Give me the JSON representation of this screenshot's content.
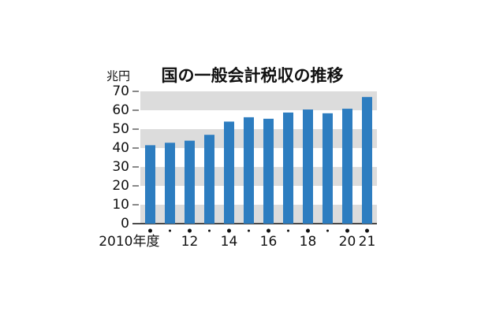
{
  "chart_data": {
    "type": "bar",
    "title": "国の一般会計税収の推移",
    "y_unit": "兆円",
    "categories": [
      "2010年度",
      null,
      "12",
      null,
      "14",
      null,
      "16",
      null,
      "18",
      null,
      "20",
      "21"
    ],
    "values": [
      41.5,
      42.8,
      43.9,
      47.0,
      54.0,
      56.3,
      55.5,
      58.8,
      60.4,
      58.4,
      60.8,
      67.0
    ],
    "color": "#2d7dc0",
    "ylim": [
      0,
      70
    ],
    "yticks": [
      0,
      10,
      20,
      30,
      40,
      50,
      60,
      70
    ],
    "grid": true
  }
}
